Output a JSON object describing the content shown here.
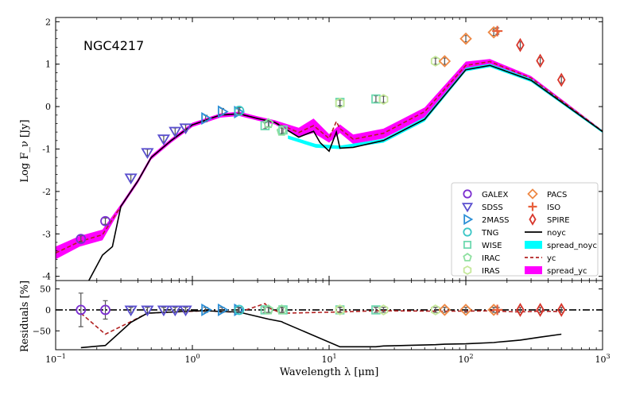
{
  "chart_data": [
    {
      "type": "line",
      "panel": "main",
      "title": "NGC4217",
      "xlabel": "",
      "ylabel": "Log F_ν [Jy]",
      "xscale": "log",
      "xlim": [
        0.1,
        1000
      ],
      "ylim": [
        -4.1,
        2.1
      ],
      "yticks": [
        -4,
        -3,
        -2,
        -1,
        0,
        1,
        2
      ],
      "ytick_labels": [
        "-4",
        "-3",
        "-2",
        "-1",
        "0",
        "1",
        "2"
      ],
      "xtick_labels": [
        "",
        "",
        "",
        "",
        ""
      ],
      "series": [
        {
          "name": "spread_yc",
          "kind": "band",
          "color": "#ff00ff",
          "x": [
            0.1,
            0.15,
            0.22,
            0.3,
            0.4,
            0.5,
            0.7,
            1.0,
            1.6,
            2.2,
            3.0,
            4.0,
            6.0,
            7.7,
            10.0,
            12.0,
            15.0,
            25.0,
            50.0,
            100.0,
            150.0,
            300.0,
            1000.0
          ],
          "lower": [
            -3.6,
            -3.3,
            -3.15,
            -2.4,
            -1.8,
            -1.25,
            -0.85,
            -0.48,
            -0.26,
            -0.22,
            -0.33,
            -0.42,
            -0.72,
            -0.62,
            -0.85,
            -0.62,
            -0.88,
            -0.75,
            -0.25,
            0.88,
            0.98,
            0.62,
            -0.6
          ],
          "upper": [
            -3.3,
            -3.05,
            -2.9,
            -2.3,
            -1.7,
            -1.15,
            -0.75,
            -0.38,
            -0.16,
            -0.12,
            -0.23,
            -0.32,
            -0.5,
            -0.28,
            -0.65,
            -0.42,
            -0.66,
            -0.52,
            -0.02,
            1.06,
            1.12,
            0.72,
            -0.56
          ]
        },
        {
          "name": "spread_noyc",
          "kind": "band",
          "color": "#00ffff",
          "x": [
            5.0,
            8.0,
            12.0,
            25.0,
            50.0,
            100.0,
            150.0,
            300.0,
            1000.0
          ],
          "lower": [
            -0.76,
            -0.97,
            -1.0,
            -0.85,
            -0.35,
            0.83,
            0.93,
            0.58,
            -0.62
          ],
          "upper": [
            -0.68,
            -0.88,
            -0.92,
            -0.76,
            -0.25,
            0.91,
            1.01,
            0.66,
            -0.56
          ]
        },
        {
          "name": "yc",
          "kind": "line",
          "color": "#b22222",
          "dash": true,
          "x": [
            0.1,
            0.15,
            0.22,
            0.3,
            0.4,
            0.5,
            0.7,
            1.0,
            1.6,
            2.2,
            3.0,
            4.0,
            6.0,
            7.7,
            10.0,
            11.3,
            12.0,
            15.0,
            25.0,
            50.0,
            100.0,
            150.0,
            300.0,
            1000.0
          ],
          "y": [
            -3.45,
            -3.18,
            -3.02,
            -2.35,
            -1.75,
            -1.2,
            -0.8,
            -0.43,
            -0.2,
            -0.17,
            -0.28,
            -0.37,
            -0.61,
            -0.45,
            -0.75,
            -0.35,
            -0.52,
            -0.77,
            -0.63,
            -0.12,
            0.97,
            1.06,
            0.67,
            -0.58
          ]
        },
        {
          "name": "noyc",
          "kind": "line",
          "color": "#000000",
          "x": [
            0.15,
            0.22,
            0.26,
            0.3,
            0.4,
            0.5,
            0.7,
            1.0,
            1.6,
            2.2,
            3.0,
            4.0,
            6.0,
            7.7,
            8.6,
            10.0,
            11.3,
            12.0,
            15.0,
            25.0,
            50.0,
            100.0,
            150.0,
            300.0,
            1000.0
          ],
          "y": [
            -4.5,
            -3.5,
            -3.3,
            -2.35,
            -1.75,
            -1.2,
            -0.8,
            -0.43,
            -0.2,
            -0.17,
            -0.28,
            -0.37,
            -0.72,
            -0.58,
            -0.85,
            -1.05,
            -0.6,
            -0.98,
            -0.96,
            -0.8,
            -0.3,
            0.87,
            0.97,
            0.62,
            -0.59
          ]
        }
      ],
      "observations": [
        {
          "name": "GALEX",
          "marker": "circle",
          "color": "#7b2fd0",
          "points": [
            [
              0.153,
              -3.12
            ],
            [
              0.231,
              -2.7
            ]
          ]
        },
        {
          "name": "SDSS",
          "marker": "triangle-down",
          "color": "#5a4fcf",
          "points": [
            [
              0.355,
              -1.68
            ],
            [
              0.469,
              -1.08
            ],
            [
              0.617,
              -0.76
            ],
            [
              0.748,
              -0.58
            ],
            [
              0.893,
              -0.5
            ]
          ]
        },
        {
          "name": "2MASS",
          "marker": "triangle-right",
          "color": "#2c8fd6",
          "points": [
            [
              1.25,
              -0.28
            ],
            [
              1.65,
              -0.12
            ],
            [
              2.17,
              -0.13
            ]
          ]
        },
        {
          "name": "TNG",
          "marker": "circle",
          "color": "#3cc6c6",
          "points": [
            [
              2.2,
              -0.1
            ]
          ]
        },
        {
          "name": "WISE",
          "marker": "square",
          "color": "#6fd9b0",
          "points": [
            [
              3.4,
              -0.45
            ],
            [
              4.6,
              -0.55
            ],
            [
              12.0,
              0.1
            ],
            [
              22.0,
              0.18
            ]
          ]
        },
        {
          "name": "IRAC",
          "marker": "pentagon",
          "color": "#8ee0a0",
          "points": [
            [
              3.6,
              -0.4
            ],
            [
              4.5,
              -0.58
            ]
          ]
        },
        {
          "name": "IRAS",
          "marker": "hexagon",
          "color": "#c5e89a",
          "points": [
            [
              12.0,
              0.08
            ],
            [
              25.0,
              0.17
            ],
            [
              60.0,
              1.07
            ]
          ]
        },
        {
          "name": "PACS",
          "marker": "diamond",
          "color": "#ee8844",
          "points": [
            [
              70.0,
              1.07
            ],
            [
              100.0,
              1.6
            ],
            [
              160.0,
              1.75
            ]
          ]
        },
        {
          "name": "ISO",
          "marker": "plus",
          "color": "#e8603c",
          "points": [
            [
              170.0,
              1.78
            ]
          ]
        },
        {
          "name": "SPIRE",
          "marker": "thin-diamond",
          "color": "#d8362b",
          "points": [
            [
              250.0,
              1.45
            ],
            [
              350.0,
              1.08
            ],
            [
              500.0,
              0.63
            ]
          ]
        }
      ],
      "legend": {
        "position": "lower-right",
        "entries": [
          "GALEX",
          "SDSS",
          "2MASS",
          "TNG",
          "WISE",
          "IRAC",
          "IRAS",
          "PACS",
          "ISO",
          "SPIRE",
          "noyc",
          "spread_noyc",
          "yc",
          "spread_yc"
        ]
      }
    },
    {
      "type": "line",
      "panel": "residuals",
      "xlabel": "Wavelength λ [μm]",
      "ylabel": "Residuals [%]",
      "xscale": "log",
      "xlim": [
        0.1,
        1000
      ],
      "ylim": [
        -95,
        70
      ],
      "yticks": [
        -50,
        0,
        50
      ],
      "ytick_labels": [
        "−50",
        "0",
        "50"
      ],
      "xticks": [
        0.1,
        1,
        10,
        100,
        1000
      ],
      "xtick_labels": [
        "10",
        "10",
        "10",
        "10",
        "10"
      ],
      "xtick_exponents": [
        "−1",
        "0",
        "1",
        "2",
        "3"
      ],
      "reference_line": {
        "y": 0,
        "style": "dash-dot",
        "color": "#000000"
      },
      "series": [
        {
          "name": "yc",
          "color": "#b22222",
          "dash": true,
          "x": [
            0.153,
            0.231,
            0.355,
            0.469,
            0.617,
            0.748,
            0.893,
            1.25,
            1.65,
            2.17,
            3.4,
            3.6,
            4.5,
            4.6,
            12.0,
            22.0,
            25.0,
            60.0,
            70.0,
            100.0,
            160.0,
            170.0,
            250.0,
            350.0,
            500.0
          ],
          "y": [
            -8,
            -58,
            -28,
            -8,
            -6,
            -5,
            -4,
            -2,
            -4,
            -6,
            15,
            5,
            -8,
            -8,
            -5,
            -2,
            -2,
            -3,
            -3,
            -3,
            -2,
            -3,
            -5,
            -3,
            -4
          ]
        },
        {
          "name": "noyc",
          "color": "#000000",
          "x": [
            0.153,
            0.231,
            0.355,
            0.469,
            0.617,
            0.748,
            0.893,
            1.25,
            1.65,
            2.17,
            3.4,
            3.6,
            4.5,
            4.6,
            12.0,
            22.0,
            25.0,
            60.0,
            70.0,
            100.0,
            160.0,
            170.0,
            250.0,
            350.0,
            500.0
          ],
          "y": [
            -90,
            -85,
            -30,
            -8,
            -6,
            -5,
            -3,
            -2,
            -4,
            -5,
            -20,
            -22,
            -28,
            -30,
            -88,
            -88,
            -86,
            -83,
            -82,
            -81,
            -78,
            -77,
            -72,
            -65,
            -58
          ]
        }
      ],
      "observations": [
        {
          "name": "GALEX",
          "marker": "circle",
          "color": "#7b2fd0",
          "points": [
            [
              0.153,
              0
            ],
            [
              0.231,
              0
            ]
          ],
          "errors": [
            40,
            22
          ]
        },
        {
          "name": "SDSS",
          "marker": "triangle-down",
          "color": "#5a4fcf",
          "points": [
            [
              0.355,
              0
            ],
            [
              0.469,
              0
            ],
            [
              0.617,
              0
            ],
            [
              0.748,
              0
            ],
            [
              0.893,
              0
            ]
          ]
        },
        {
          "name": "2MASS",
          "marker": "triangle-right",
          "color": "#2c8fd6",
          "points": [
            [
              1.25,
              0
            ],
            [
              1.65,
              0
            ],
            [
              2.17,
              0
            ]
          ]
        },
        {
          "name": "TNG",
          "marker": "circle",
          "color": "#3cc6c6",
          "points": [
            [
              2.2,
              0
            ]
          ]
        },
        {
          "name": "WISE",
          "marker": "square",
          "color": "#6fd9b0",
          "points": [
            [
              3.4,
              0
            ],
            [
              4.6,
              0
            ],
            [
              12.0,
              0
            ],
            [
              22.0,
              0
            ]
          ]
        },
        {
          "name": "IRAC",
          "marker": "pentagon",
          "color": "#8ee0a0",
          "points": [
            [
              3.6,
              0
            ],
            [
              4.5,
              0
            ]
          ]
        },
        {
          "name": "IRAS",
          "marker": "hexagon",
          "color": "#c5e89a",
          "points": [
            [
              12.0,
              0
            ],
            [
              25.0,
              0
            ],
            [
              60.0,
              0
            ]
          ]
        },
        {
          "name": "PACS",
          "marker": "diamond",
          "color": "#ee8844",
          "points": [
            [
              70.0,
              0
            ],
            [
              100.0,
              0
            ],
            [
              160.0,
              0
            ]
          ]
        },
        {
          "name": "ISO",
          "marker": "plus",
          "color": "#e8603c",
          "points": [
            [
              170.0,
              0
            ]
          ]
        },
        {
          "name": "SPIRE",
          "marker": "thin-diamond",
          "color": "#d8362b",
          "points": [
            [
              250.0,
              0
            ],
            [
              350.0,
              0
            ],
            [
              500.0,
              0
            ]
          ]
        }
      ]
    }
  ]
}
